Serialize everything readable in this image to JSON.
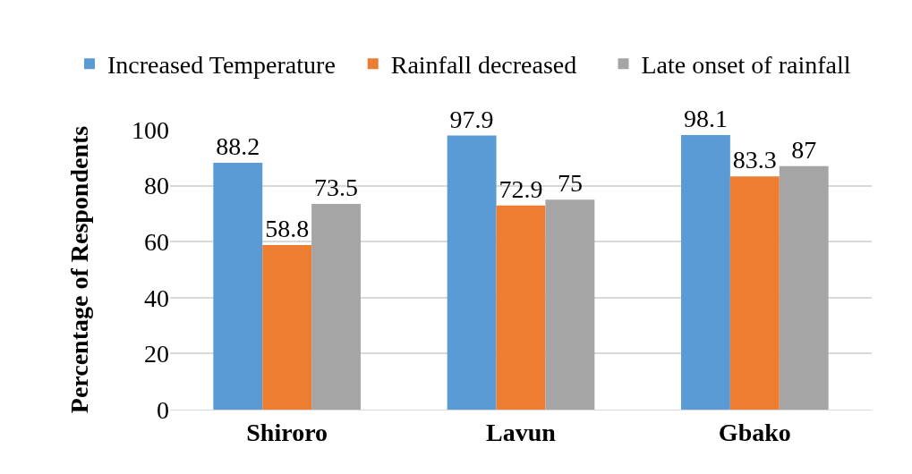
{
  "chart_data": {
    "type": "bar",
    "ylabel": "Percentage of Respondents",
    "categories": [
      "Shiroro",
      "Lavun",
      "Gbako"
    ],
    "series": [
      {
        "name": "Increased Temperature",
        "color": "#5b9bd5",
        "values": [
          88.2,
          97.9,
          98.1
        ]
      },
      {
        "name": "Rainfall decreased",
        "color": "#ed7d31",
        "values": [
          58.8,
          72.9,
          83.3
        ]
      },
      {
        "name": "Late onset of rainfall",
        "color": "#a5a5a5",
        "values": [
          73.5,
          75,
          87
        ]
      }
    ],
    "ylim": [
      0,
      100
    ],
    "yticks": [
      0,
      20,
      40,
      60,
      80,
      100
    ],
    "grid": "y",
    "legend": "top",
    "data_labels": true
  }
}
